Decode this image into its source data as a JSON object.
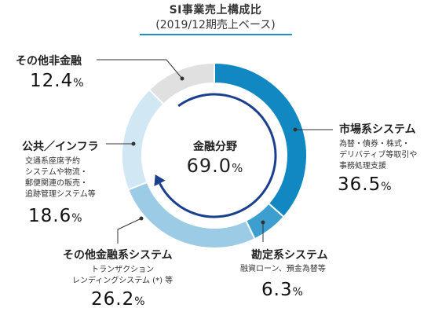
{
  "header": {
    "title": "SI事業売上構成比",
    "subtitle": "(2019/12期売上ベース)"
  },
  "center": {
    "label": "金融分野",
    "value": "69.0",
    "unit": "%"
  },
  "labels": {
    "market": {
      "name": "市場系システム",
      "desc": [
        "為替・債券・株式・",
        "デリバティブ等取引や",
        "事務処理支援"
      ],
      "value": "36.5",
      "unit": "%"
    },
    "accounting": {
      "name": "勘定系システム",
      "desc": [
        "融資ローン、預金為替等"
      ],
      "value": "6.3",
      "unit": "%"
    },
    "otherfin": {
      "name": "その他金融系システム",
      "desc": [
        "トランザクション",
        "レンディングシステム (*) 等"
      ],
      "value": "26.2",
      "unit": "%"
    },
    "public": {
      "name": "公共／インフラ",
      "desc": [
        "交通系座席予約",
        "システムや物流・",
        "郵便関連の販売・",
        "追跡管理システム等"
      ],
      "value": "18.6",
      "unit": "%"
    },
    "nonfin": {
      "name": "その他非金融",
      "desc": [],
      "value": "12.4",
      "unit": "%"
    }
  },
  "colors": {
    "market": "#1188c2",
    "accounting": "#3d9fcf",
    "otherfin": "#9ccbe6",
    "public": "#d2e7f4",
    "nonfin": "#e0e0e0",
    "arrow": "#1a3f8f",
    "leader": "#333333"
  },
  "chart_data": {
    "type": "pie",
    "title": "SI事業売上構成比",
    "subtitle": "(2019/12期売上ベース)",
    "center_label": "金融分野 69.0%",
    "categories": [
      "市場系システム",
      "勘定系システム",
      "その他金融系システム",
      "公共／インフラ",
      "その他非金融"
    ],
    "values": [
      36.5,
      6.3,
      26.2,
      18.6,
      12.4
    ],
    "unit": "%"
  }
}
